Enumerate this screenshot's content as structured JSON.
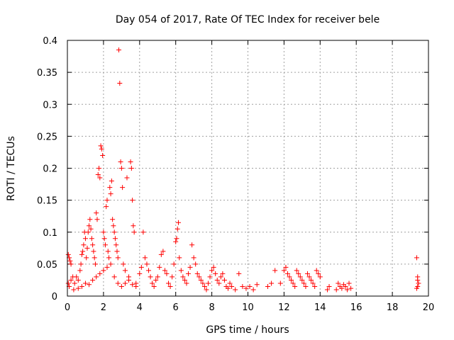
{
  "chart_data": {
    "type": "scatter",
    "title": "Day 054 of 2017, Rate Of TEC Index for receiver bele",
    "xlabel": "GPS time / hours",
    "ylabel": "ROTI / TECUs",
    "xlim": [
      0,
      20
    ],
    "ylim": [
      0,
      0.4
    ],
    "xticks": [
      "0",
      "2",
      "4",
      "6",
      "8",
      "10",
      "12",
      "14",
      "16",
      "18",
      "20"
    ],
    "yticks": [
      "0",
      "0.05",
      "0.1",
      "0.15",
      "0.2",
      "0.25",
      "0.3",
      "0.35",
      "0.4"
    ],
    "grid": true,
    "marker": "+",
    "color": "#ff0000",
    "points": [
      [
        0.05,
        0.065
      ],
      [
        0.1,
        0.06
      ],
      [
        0.15,
        0.055
      ],
      [
        0.2,
        0.05
      ],
      [
        0.05,
        0.02
      ],
      [
        0.1,
        0.015
      ],
      [
        0.2,
        0.025
      ],
      [
        0.3,
        0.03
      ],
      [
        0.35,
        0.01
      ],
      [
        0.4,
        0.02
      ],
      [
        0.5,
        0.03
      ],
      [
        0.6,
        0.025
      ],
      [
        0.7,
        0.04
      ],
      [
        0.75,
        0.05
      ],
      [
        0.8,
        0.065
      ],
      [
        0.85,
        0.07
      ],
      [
        0.9,
        0.08
      ],
      [
        0.95,
        0.1
      ],
      [
        1.0,
        0.09
      ],
      [
        1.05,
        0.06
      ],
      [
        1.1,
        0.075
      ],
      [
        1.15,
        0.1
      ],
      [
        1.2,
        0.11
      ],
      [
        1.25,
        0.12
      ],
      [
        1.3,
        0.105
      ],
      [
        1.35,
        0.09
      ],
      [
        1.4,
        0.08
      ],
      [
        1.45,
        0.07
      ],
      [
        1.5,
        0.06
      ],
      [
        1.55,
        0.05
      ],
      [
        1.6,
        0.13
      ],
      [
        1.65,
        0.12
      ],
      [
        1.7,
        0.19
      ],
      [
        1.75,
        0.2
      ],
      [
        1.8,
        0.185
      ],
      [
        1.85,
        0.235
      ],
      [
        1.9,
        0.23
      ],
      [
        1.95,
        0.22
      ],
      [
        2.0,
        0.1
      ],
      [
        2.05,
        0.09
      ],
      [
        2.1,
        0.08
      ],
      [
        2.15,
        0.14
      ],
      [
        2.2,
        0.15
      ],
      [
        2.25,
        0.07
      ],
      [
        2.3,
        0.06
      ],
      [
        2.35,
        0.17
      ],
      [
        2.4,
        0.16
      ],
      [
        2.45,
        0.18
      ],
      [
        2.5,
        0.12
      ],
      [
        2.55,
        0.11
      ],
      [
        2.6,
        0.1
      ],
      [
        2.65,
        0.09
      ],
      [
        2.7,
        0.08
      ],
      [
        2.75,
        0.07
      ],
      [
        2.8,
        0.06
      ],
      [
        2.85,
        0.385
      ],
      [
        2.9,
        0.333
      ],
      [
        2.95,
        0.21
      ],
      [
        3.0,
        0.2
      ],
      [
        3.05,
        0.17
      ],
      [
        3.1,
        0.05
      ],
      [
        3.2,
        0.04
      ],
      [
        3.3,
        0.185
      ],
      [
        3.4,
        0.03
      ],
      [
        3.5,
        0.21
      ],
      [
        3.55,
        0.2
      ],
      [
        3.6,
        0.15
      ],
      [
        3.65,
        0.11
      ],
      [
        3.7,
        0.1
      ],
      [
        3.8,
        0.02
      ],
      [
        0.6,
        0.012
      ],
      [
        0.8,
        0.015
      ],
      [
        1.0,
        0.02
      ],
      [
        1.2,
        0.018
      ],
      [
        1.4,
        0.025
      ],
      [
        1.6,
        0.03
      ],
      [
        1.8,
        0.035
      ],
      [
        2.0,
        0.04
      ],
      [
        2.2,
        0.045
      ],
      [
        2.4,
        0.05
      ],
      [
        2.6,
        0.03
      ],
      [
        2.8,
        0.02
      ],
      [
        3.0,
        0.015
      ],
      [
        3.2,
        0.02
      ],
      [
        3.4,
        0.025
      ],
      [
        3.6,
        0.018
      ],
      [
        3.8,
        0.015
      ],
      [
        4.0,
        0.035
      ],
      [
        4.1,
        0.045
      ],
      [
        4.2,
        0.1
      ],
      [
        4.3,
        0.06
      ],
      [
        4.4,
        0.05
      ],
      [
        4.5,
        0.04
      ],
      [
        4.6,
        0.03
      ],
      [
        4.7,
        0.02
      ],
      [
        4.8,
        0.015
      ],
      [
        4.9,
        0.025
      ],
      [
        5.0,
        0.03
      ],
      [
        5.1,
        0.045
      ],
      [
        5.2,
        0.065
      ],
      [
        5.3,
        0.07
      ],
      [
        5.4,
        0.04
      ],
      [
        5.5,
        0.035
      ],
      [
        5.6,
        0.02
      ],
      [
        5.7,
        0.015
      ],
      [
        5.8,
        0.03
      ],
      [
        5.9,
        0.05
      ],
      [
        6.0,
        0.085
      ],
      [
        6.05,
        0.09
      ],
      [
        6.1,
        0.105
      ],
      [
        6.15,
        0.115
      ],
      [
        6.2,
        0.06
      ],
      [
        6.3,
        0.04
      ],
      [
        6.4,
        0.03
      ],
      [
        6.5,
        0.025
      ],
      [
        6.6,
        0.02
      ],
      [
        6.7,
        0.035
      ],
      [
        6.8,
        0.045
      ],
      [
        6.9,
        0.08
      ],
      [
        7.0,
        0.06
      ],
      [
        7.1,
        0.05
      ],
      [
        7.2,
        0.035
      ],
      [
        7.3,
        0.03
      ],
      [
        7.4,
        0.025
      ],
      [
        7.5,
        0.02
      ],
      [
        7.6,
        0.015
      ],
      [
        7.7,
        0.01
      ],
      [
        7.8,
        0.02
      ],
      [
        7.9,
        0.03
      ],
      [
        8.0,
        0.04
      ],
      [
        8.1,
        0.045
      ],
      [
        8.2,
        0.035
      ],
      [
        8.3,
        0.025
      ],
      [
        8.4,
        0.02
      ],
      [
        8.5,
        0.03
      ],
      [
        8.6,
        0.035
      ],
      [
        8.7,
        0.025
      ],
      [
        8.8,
        0.015
      ],
      [
        8.9,
        0.012
      ],
      [
        9.0,
        0.02
      ],
      [
        9.1,
        0.015
      ],
      [
        9.3,
        0.01
      ],
      [
        9.5,
        0.035
      ],
      [
        9.7,
        0.015
      ],
      [
        9.9,
        0.012
      ],
      [
        10.1,
        0.015
      ],
      [
        10.3,
        0.01
      ],
      [
        10.5,
        0.018
      ],
      [
        11.1,
        0.015
      ],
      [
        11.3,
        0.02
      ],
      [
        11.5,
        0.04
      ],
      [
        11.8,
        0.02
      ],
      [
        12.0,
        0.04
      ],
      [
        12.1,
        0.045
      ],
      [
        12.2,
        0.035
      ],
      [
        12.3,
        0.03
      ],
      [
        12.4,
        0.025
      ],
      [
        12.5,
        0.02
      ],
      [
        12.6,
        0.015
      ],
      [
        12.7,
        0.04
      ],
      [
        12.8,
        0.035
      ],
      [
        12.9,
        0.03
      ],
      [
        13.0,
        0.025
      ],
      [
        13.1,
        0.02
      ],
      [
        13.2,
        0.015
      ],
      [
        13.3,
        0.035
      ],
      [
        13.4,
        0.03
      ],
      [
        13.5,
        0.025
      ],
      [
        13.6,
        0.02
      ],
      [
        13.7,
        0.015
      ],
      [
        13.8,
        0.04
      ],
      [
        13.9,
        0.035
      ],
      [
        14.0,
        0.03
      ],
      [
        14.4,
        0.01
      ],
      [
        14.5,
        0.015
      ],
      [
        14.9,
        0.01
      ],
      [
        15.0,
        0.02
      ],
      [
        15.1,
        0.015
      ],
      [
        15.2,
        0.012
      ],
      [
        15.3,
        0.018
      ],
      [
        15.4,
        0.015
      ],
      [
        15.5,
        0.01
      ],
      [
        15.6,
        0.02
      ],
      [
        15.7,
        0.012
      ],
      [
        19.35,
        0.06
      ],
      [
        19.4,
        0.03
      ],
      [
        19.4,
        0.025
      ],
      [
        19.45,
        0.02
      ],
      [
        19.4,
        0.015
      ],
      [
        19.35,
        0.012
      ]
    ]
  }
}
